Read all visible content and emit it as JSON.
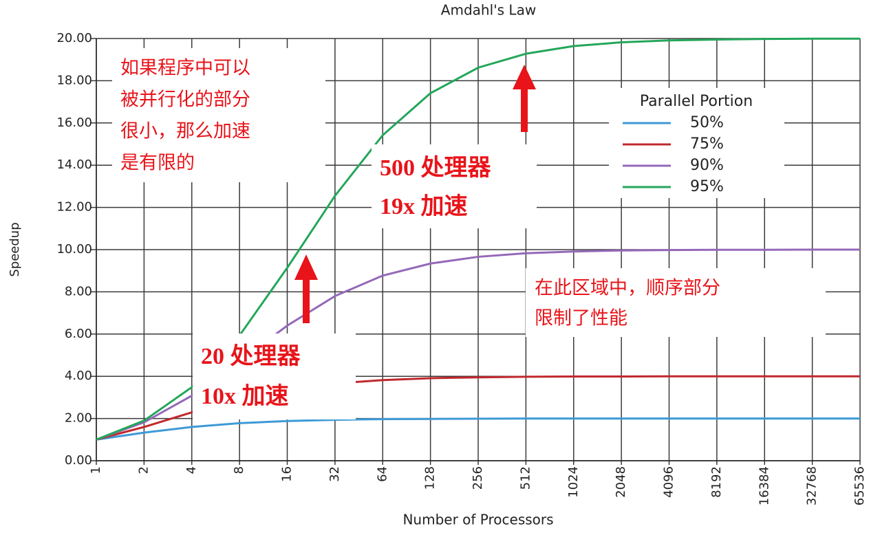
{
  "chart_data": {
    "type": "line",
    "title": "Amdahl's Law",
    "x_label": "Number of Processors",
    "y_label": "Speedup",
    "x": [
      1,
      2,
      4,
      8,
      16,
      32,
      64,
      128,
      256,
      512,
      1024,
      2048,
      4096,
      8192,
      16384,
      32768,
      65536
    ],
    "xscale": "log2",
    "xlim": [
      1,
      65536
    ],
    "xticks": [
      1,
      2,
      4,
      8,
      16,
      32,
      64,
      128,
      256,
      512,
      1024,
      2048,
      4096,
      8192,
      16384,
      32768,
      65536
    ],
    "ylim": [
      0,
      20
    ],
    "yticks": [
      {
        "value": 0,
        "label": "0.00"
      },
      {
        "value": 2,
        "label": "2.00"
      },
      {
        "value": 4,
        "label": "4.00"
      },
      {
        "value": 6,
        "label": "6.00"
      },
      {
        "value": 8,
        "label": "8.00"
      },
      {
        "value": 10,
        "label": "10.00"
      },
      {
        "value": 12,
        "label": "12.00"
      },
      {
        "value": 14,
        "label": "14.00"
      },
      {
        "value": 16,
        "label": "16.00"
      },
      {
        "value": 18,
        "label": "18.00"
      },
      {
        "value": 20,
        "label": "20.00"
      }
    ],
    "grid": true,
    "legend_title": "Parallel Portion",
    "legend_position": "right",
    "series": [
      {
        "name": "50%",
        "color": "#3d9ad6",
        "values": [
          1,
          1.33,
          1.6,
          1.78,
          1.88,
          1.94,
          1.97,
          1.98,
          1.99,
          2,
          2,
          2,
          2,
          2,
          2,
          2,
          2
        ]
      },
      {
        "name": "75%",
        "color": "#c0282d",
        "values": [
          1,
          1.6,
          2.29,
          2.91,
          3.37,
          3.66,
          3.82,
          3.91,
          3.95,
          3.98,
          3.99,
          3.99,
          4,
          4,
          4,
          4,
          4
        ]
      },
      {
        "name": "90%",
        "color": "#9468b8",
        "values": [
          1,
          1.82,
          3.08,
          4.71,
          6.4,
          7.8,
          8.77,
          9.34,
          9.66,
          9.83,
          9.91,
          9.96,
          9.98,
          9.99,
          9.99,
          10,
          10
        ]
      },
      {
        "name": "95%",
        "color": "#23a65a",
        "values": [
          1,
          1.9,
          3.48,
          5.93,
          9.14,
          12.55,
          15.42,
          17.41,
          18.62,
          19.28,
          19.64,
          19.82,
          19.91,
          19.95,
          19.98,
          19.99,
          19.99
        ]
      }
    ],
    "annotations": [
      {
        "lines": [
          "如果程序中可以",
          "被并行化的部分",
          "很小，那么加速",
          "是有限的"
        ]
      },
      {
        "lines": [
          "500 处理器",
          "19x 加速"
        ]
      },
      {
        "lines": [
          "20 处理器",
          "10x 加速"
        ]
      },
      {
        "lines": [
          "在此区域中，顺序部分",
          "限制了性能"
        ]
      }
    ]
  }
}
